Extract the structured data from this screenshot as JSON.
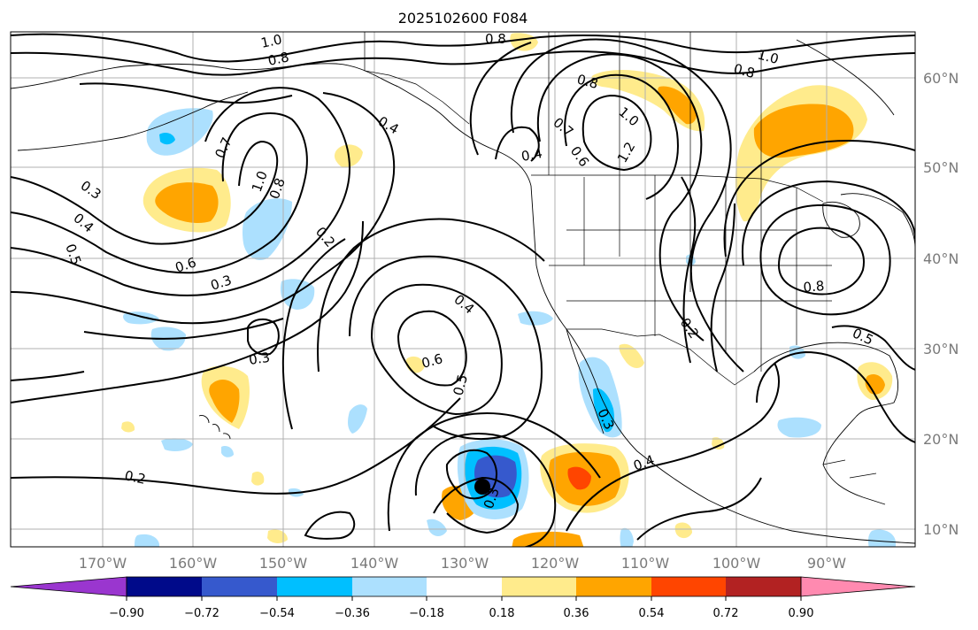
{
  "title": "2025102600 F084",
  "map": {
    "lon_labels": [
      "170°W",
      "160°W",
      "150°W",
      "140°W",
      "130°W",
      "120°W",
      "110°W",
      "100°W",
      "90°W"
    ],
    "lat_labels": [
      "60°N",
      "50°N",
      "40°N",
      "30°N",
      "20°N",
      "10°N"
    ],
    "contour_labels": [
      "1.0",
      "0.8",
      "0.8",
      "1.0",
      "0.8",
      "0.8",
      "0.7",
      "0.4",
      "0.3",
      "0.4",
      "0.5",
      "1.0",
      "0.8",
      "0.2",
      "0.6",
      "0.3",
      "0.4",
      "0.7",
      "0.6",
      "1.0",
      "1.2",
      "0.4",
      "0.6",
      "0.5",
      "0.3",
      "0.3",
      "0.4",
      "0.2",
      "0.8",
      "0.5",
      "0.2",
      "0.3"
    ],
    "colors": {
      "grid": "#b0b0b0",
      "contour": "#000000",
      "tick_label": "#7a7a7a"
    }
  },
  "colorbar": {
    "labels": [
      "−0.90",
      "−0.72",
      "−0.54",
      "−0.36",
      "−0.18",
      "0.18",
      "0.36",
      "0.54",
      "0.72",
      "0.90"
    ],
    "colors": [
      "#9a36cf",
      "#000a8a",
      "#3659cd",
      "#00bfff",
      "#ace0fe",
      "#ffffff",
      "#ffeb8c",
      "#ffa500",
      "#ff4500",
      "#b22222",
      "#ff8ab0"
    ]
  }
}
